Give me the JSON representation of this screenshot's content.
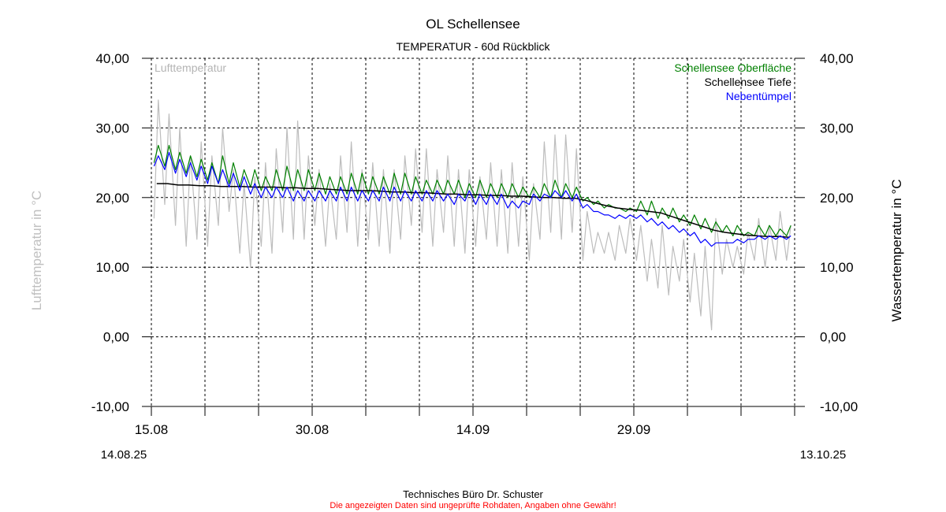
{
  "chart_data": {
    "type": "line",
    "title": "OL Schellensee",
    "subtitle": "TEMPERATUR - 60d Rückblick",
    "ylabel_left": "Lufttemperatur in °C",
    "ylabel_right": "Wassertemperatur in °C",
    "ylim": [
      -10,
      40
    ],
    "y_ticks": [
      "40,00",
      "30,00",
      "20,00",
      "10,00",
      "0,00",
      "-10,00"
    ],
    "y_tick_values": [
      40,
      30,
      20,
      10,
      0,
      -10
    ],
    "x_tick_labels": [
      {
        "label": "15.08",
        "day": 0
      },
      {
        "label": "30.08",
        "day": 15
      },
      {
        "label": "14.09",
        "day": 30
      },
      {
        "label": "29.09",
        "day": 45
      }
    ],
    "x_minor_tick_days": [
      0,
      5,
      10,
      15,
      20,
      25,
      30,
      35,
      40,
      45,
      50,
      55,
      60
    ],
    "x_range_days": [
      0,
      60
    ],
    "start_date": "14.08.25",
    "end_date": "13.10.25",
    "grid": true,
    "legend_left": {
      "label": "Lufttemperatur",
      "color": "#b4b4b4"
    },
    "series": [
      {
        "name": "Lufttemperatur",
        "color": "#bdbdbd",
        "axis": "left",
        "format": "daily_min_max",
        "values": [
          17,
          34,
          19,
          32,
          16,
          30,
          13,
          26,
          14,
          28,
          13,
          26,
          16,
          30,
          18,
          24,
          12,
          22,
          10,
          23,
          13,
          25,
          12,
          27,
          15,
          30,
          14,
          31,
          14,
          26,
          16,
          24,
          13,
          22,
          14,
          26,
          15,
          28,
          13,
          24,
          14,
          25,
          13,
          24,
          12,
          24,
          14,
          26,
          16,
          27,
          15,
          27,
          13,
          24,
          15,
          26,
          13,
          24,
          12,
          24,
          13,
          23,
          14,
          25,
          13,
          24,
          12,
          25,
          13,
          23,
          11,
          22,
          14,
          28,
          15,
          29,
          14,
          29,
          15,
          27,
          11,
          18,
          12,
          15,
          12,
          15,
          11,
          16,
          12,
          17,
          11,
          16,
          8,
          14,
          7,
          16,
          6,
          13,
          8,
          14,
          5,
          12,
          3,
          13,
          1,
          17,
          9,
          14,
          10,
          13,
          9,
          15,
          11,
          17,
          10,
          16,
          11,
          18,
          11,
          16
        ]
      },
      {
        "name": "Schellensee Oberfläche",
        "color": "#008000",
        "axis": "right",
        "format": "daily_min_max",
        "values": [
          25,
          27.5,
          24.5,
          27.5,
          24,
          26.5,
          23.5,
          26,
          23,
          25.5,
          22.5,
          25,
          22,
          26,
          22,
          25,
          21.5,
          24,
          21.5,
          24,
          21,
          23,
          21,
          24,
          21,
          24.5,
          21,
          24,
          21,
          24,
          21,
          23.5,
          20.5,
          23,
          20.5,
          23,
          20.5,
          23.5,
          20.5,
          23.5,
          20.5,
          23,
          20.5,
          23,
          20.5,
          23.5,
          20.5,
          23.5,
          20.5,
          23,
          20.5,
          22.5,
          20.5,
          22.5,
          20.5,
          22.5,
          20.5,
          22.5,
          20,
          22,
          20,
          22.5,
          20,
          22,
          20,
          22,
          20,
          22,
          20,
          21.5,
          20,
          21.5,
          20,
          22,
          20,
          22.5,
          20,
          22,
          20,
          21.5,
          19.5,
          20,
          19,
          19.5,
          18.5,
          19,
          18.5,
          18.5,
          18,
          18.5,
          18,
          19.5,
          17.5,
          19.5,
          17,
          18.5,
          17,
          18.5,
          16.5,
          17.5,
          16,
          17.5,
          15.5,
          17,
          15,
          16.5,
          15,
          16,
          14.5,
          16,
          14.5,
          15,
          14.5,
          16,
          14.5,
          16,
          14.5,
          15.5,
          14.5,
          16
        ]
      },
      {
        "name": "Schellensee Tiefe",
        "color": "#000000",
        "axis": "right",
        "format": "daily",
        "values": [
          22,
          22,
          21.8,
          21.8,
          21.7,
          21.7,
          21.6,
          21.6,
          21.6,
          21.5,
          21.5,
          21.5,
          21.4,
          21.4,
          21.3,
          21.3,
          21.2,
          21.1,
          21,
          21,
          21,
          20.9,
          20.8,
          20.8,
          20.7,
          20.7,
          20.6,
          20.5,
          20.5,
          20.4,
          20.4,
          20.3,
          20.3,
          20.2,
          20.2,
          20.1,
          20,
          20,
          19.9,
          19.9,
          19.6,
          19.2,
          18.8,
          18.5,
          18.3,
          18.2,
          18,
          17.8,
          17.3,
          16.8,
          16.3,
          15.8,
          15.3,
          15,
          14.8,
          14.6,
          14.5,
          14.4,
          14.4,
          14.3
        ]
      },
      {
        "name": "Nebentümpel",
        "color": "#0000ff",
        "axis": "right",
        "format": "daily_min_max",
        "values": [
          24.5,
          26,
          24,
          26.5,
          23.5,
          25.5,
          23,
          25,
          22.5,
          24.5,
          22,
          24.5,
          22,
          24,
          21.5,
          23.5,
          21,
          23,
          20.5,
          22,
          20,
          21.5,
          20,
          21.5,
          20,
          21.5,
          19.5,
          21,
          19.5,
          21,
          19.5,
          21,
          19.5,
          21,
          19.5,
          21.5,
          19.5,
          21.5,
          19.5,
          21,
          19.5,
          21,
          19.5,
          21.5,
          19.5,
          21.5,
          19.5,
          21,
          19.5,
          21,
          19.5,
          21,
          19.5,
          21,
          19.5,
          20.5,
          19,
          20.5,
          19.5,
          21,
          19,
          20.5,
          19,
          20.5,
          19,
          20.5,
          18.5,
          19.5,
          18.5,
          19.5,
          19,
          20.5,
          19.5,
          20.5,
          20,
          21,
          20,
          21,
          19.5,
          20.5,
          18.5,
          19,
          18,
          18,
          17.5,
          17.5,
          17,
          17.5,
          17,
          17.5,
          17,
          17.5,
          16.5,
          17,
          16,
          16.5,
          15.5,
          16,
          15,
          15.5,
          14.5,
          15,
          13.5,
          14,
          13,
          13.5,
          13.5,
          13.5,
          13.5,
          14,
          13.5,
          14,
          14,
          14.5,
          14,
          14.5,
          14,
          14.5,
          14,
          14.5
        ]
      }
    ]
  },
  "footer": {
    "company": "Technisches Büro Dr. Schuster",
    "disclaimer": "Die angezeigten Daten sind ungeprüfte Rohdaten, Angaben ohne Gewähr!",
    "disclaimer_color": "#ff0000"
  }
}
